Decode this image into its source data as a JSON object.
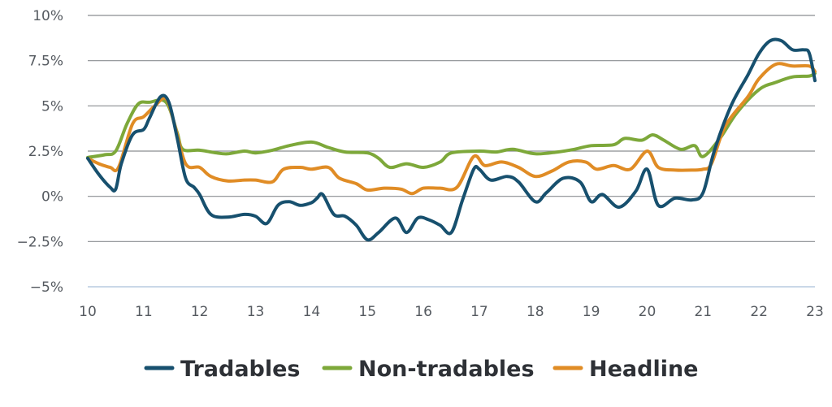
{
  "chart_data": {
    "type": "line",
    "title": "",
    "xlabel": "",
    "ylabel": "",
    "xlim": [
      10,
      23
    ],
    "ylim": [
      -5,
      10
    ],
    "y_ticks": [
      10,
      7.5,
      5,
      2.5,
      0,
      -2.5,
      -5
    ],
    "y_tick_labels": [
      "10%",
      "7.5%",
      "5%",
      "2.5%",
      "0%",
      "−2.5%",
      "−5%"
    ],
    "x_ticks": [
      10,
      11,
      12,
      13,
      14,
      15,
      16,
      17,
      18,
      19,
      20,
      21,
      22,
      23
    ],
    "x_tick_labels": [
      "10",
      "11",
      "12",
      "13",
      "14",
      "15",
      "16",
      "17",
      "18",
      "19",
      "20",
      "21",
      "22",
      "23"
    ],
    "grid": "horizontal",
    "legend_position": "bottom",
    "series": [
      {
        "name": "Tradables",
        "color": "#17506e",
        "points": [
          [
            10.0,
            2.1
          ],
          [
            10.2,
            1.2
          ],
          [
            10.4,
            0.5
          ],
          [
            10.5,
            0.4
          ],
          [
            10.6,
            1.8
          ],
          [
            10.8,
            3.4
          ],
          [
            11.0,
            3.7
          ],
          [
            11.1,
            4.3
          ],
          [
            11.3,
            5.5
          ],
          [
            11.45,
            5.2
          ],
          [
            11.6,
            3.2
          ],
          [
            11.75,
            1.0
          ],
          [
            11.9,
            0.5
          ],
          [
            12.0,
            0.1
          ],
          [
            12.2,
            -1.0
          ],
          [
            12.5,
            -1.15
          ],
          [
            12.8,
            -1.0
          ],
          [
            13.0,
            -1.1
          ],
          [
            13.2,
            -1.5
          ],
          [
            13.4,
            -0.5
          ],
          [
            13.6,
            -0.3
          ],
          [
            13.8,
            -0.5
          ],
          [
            14.0,
            -0.35
          ],
          [
            14.1,
            -0.1
          ],
          [
            14.2,
            0.1
          ],
          [
            14.4,
            -1.0
          ],
          [
            14.6,
            -1.1
          ],
          [
            14.8,
            -1.6
          ],
          [
            15.0,
            -2.4
          ],
          [
            15.2,
            -2.0
          ],
          [
            15.5,
            -1.2
          ],
          [
            15.7,
            -2.0
          ],
          [
            15.9,
            -1.2
          ],
          [
            16.1,
            -1.3
          ],
          [
            16.3,
            -1.6
          ],
          [
            16.5,
            -2.0
          ],
          [
            16.7,
            -0.2
          ],
          [
            16.9,
            1.5
          ],
          [
            17.0,
            1.5
          ],
          [
            17.2,
            0.9
          ],
          [
            17.5,
            1.1
          ],
          [
            17.7,
            0.8
          ],
          [
            18.0,
            -0.3
          ],
          [
            18.2,
            0.2
          ],
          [
            18.5,
            1.0
          ],
          [
            18.8,
            0.8
          ],
          [
            19.0,
            -0.3
          ],
          [
            19.2,
            0.1
          ],
          [
            19.5,
            -0.6
          ],
          [
            19.8,
            0.3
          ],
          [
            20.0,
            1.5
          ],
          [
            20.2,
            -0.5
          ],
          [
            20.5,
            -0.1
          ],
          [
            20.8,
            -0.2
          ],
          [
            21.0,
            0.2
          ],
          [
            21.2,
            2.5
          ],
          [
            21.5,
            5.0
          ],
          [
            21.8,
            6.7
          ],
          [
            22.0,
            7.9
          ],
          [
            22.2,
            8.6
          ],
          [
            22.4,
            8.6
          ],
          [
            22.6,
            8.1
          ],
          [
            22.8,
            8.1
          ],
          [
            22.9,
            7.9
          ],
          [
            23.0,
            6.4
          ]
        ]
      },
      {
        "name": "Non-tradables",
        "color": "#7da83a",
        "points": [
          [
            10.0,
            2.15
          ],
          [
            10.3,
            2.3
          ],
          [
            10.5,
            2.5
          ],
          [
            10.7,
            4.0
          ],
          [
            10.9,
            5.1
          ],
          [
            11.1,
            5.2
          ],
          [
            11.4,
            5.2
          ],
          [
            11.6,
            3.5
          ],
          [
            11.7,
            2.6
          ],
          [
            12.0,
            2.55
          ],
          [
            12.3,
            2.4
          ],
          [
            12.5,
            2.35
          ],
          [
            12.8,
            2.5
          ],
          [
            13.0,
            2.4
          ],
          [
            13.3,
            2.55
          ],
          [
            13.6,
            2.8
          ],
          [
            14.0,
            3.0
          ],
          [
            14.3,
            2.7
          ],
          [
            14.6,
            2.45
          ],
          [
            15.0,
            2.4
          ],
          [
            15.2,
            2.1
          ],
          [
            15.4,
            1.6
          ],
          [
            15.7,
            1.8
          ],
          [
            16.0,
            1.6
          ],
          [
            16.3,
            1.9
          ],
          [
            16.5,
            2.4
          ],
          [
            17.0,
            2.5
          ],
          [
            17.3,
            2.45
          ],
          [
            17.6,
            2.6
          ],
          [
            18.0,
            2.35
          ],
          [
            18.4,
            2.45
          ],
          [
            18.7,
            2.6
          ],
          [
            19.0,
            2.8
          ],
          [
            19.4,
            2.85
          ],
          [
            19.6,
            3.2
          ],
          [
            19.9,
            3.1
          ],
          [
            20.1,
            3.4
          ],
          [
            20.3,
            3.1
          ],
          [
            20.6,
            2.6
          ],
          [
            20.85,
            2.8
          ],
          [
            21.0,
            2.2
          ],
          [
            21.3,
            3.2
          ],
          [
            21.6,
            4.6
          ],
          [
            22.0,
            5.9
          ],
          [
            22.3,
            6.3
          ],
          [
            22.6,
            6.6
          ],
          [
            22.9,
            6.65
          ],
          [
            23.0,
            6.8
          ]
        ]
      },
      {
        "name": "Headline",
        "color": "#e08c25",
        "points": [
          [
            10.0,
            2.1
          ],
          [
            10.2,
            1.8
          ],
          [
            10.4,
            1.6
          ],
          [
            10.55,
            1.6
          ],
          [
            10.8,
            4.0
          ],
          [
            11.0,
            4.4
          ],
          [
            11.2,
            5.0
          ],
          [
            11.4,
            5.4
          ],
          [
            11.55,
            4.0
          ],
          [
            11.75,
            1.8
          ],
          [
            12.0,
            1.6
          ],
          [
            12.2,
            1.1
          ],
          [
            12.5,
            0.85
          ],
          [
            12.8,
            0.9
          ],
          [
            13.0,
            0.9
          ],
          [
            13.3,
            0.8
          ],
          [
            13.5,
            1.5
          ],
          [
            13.8,
            1.6
          ],
          [
            14.0,
            1.5
          ],
          [
            14.3,
            1.6
          ],
          [
            14.5,
            1.0
          ],
          [
            14.8,
            0.7
          ],
          [
            15.0,
            0.35
          ],
          [
            15.3,
            0.45
          ],
          [
            15.6,
            0.4
          ],
          [
            15.8,
            0.15
          ],
          [
            16.0,
            0.45
          ],
          [
            16.3,
            0.45
          ],
          [
            16.6,
            0.5
          ],
          [
            16.9,
            2.2
          ],
          [
            17.1,
            1.7
          ],
          [
            17.4,
            1.9
          ],
          [
            17.7,
            1.6
          ],
          [
            18.0,
            1.1
          ],
          [
            18.3,
            1.4
          ],
          [
            18.6,
            1.9
          ],
          [
            18.9,
            1.9
          ],
          [
            19.1,
            1.5
          ],
          [
            19.4,
            1.7
          ],
          [
            19.7,
            1.5
          ],
          [
            20.0,
            2.5
          ],
          [
            20.2,
            1.6
          ],
          [
            20.5,
            1.45
          ],
          [
            20.8,
            1.45
          ],
          [
            21.0,
            1.5
          ],
          [
            21.15,
            1.8
          ],
          [
            21.4,
            3.9
          ],
          [
            21.8,
            5.5
          ],
          [
            22.0,
            6.5
          ],
          [
            22.3,
            7.3
          ],
          [
            22.6,
            7.2
          ],
          [
            22.9,
            7.2
          ],
          [
            23.0,
            6.9
          ]
        ]
      }
    ]
  }
}
